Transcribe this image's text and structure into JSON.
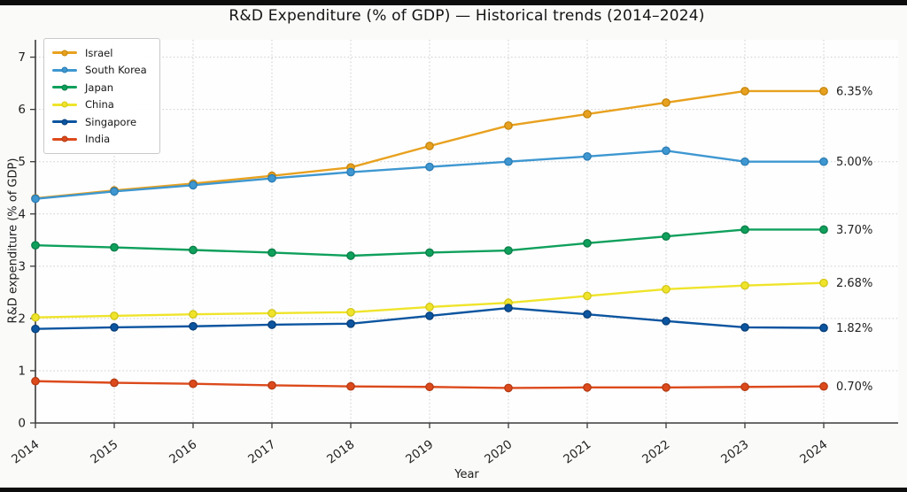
{
  "chart_data": {
    "type": "line",
    "title": "R&D Expenditure (% of GDP) — Historical trends (2014–2024)",
    "xlabel": "Year",
    "ylabel": "R&D expenditure (% of GDP)",
    "x": [
      2014,
      2015,
      2016,
      2017,
      2018,
      2019,
      2020,
      2021,
      2022,
      2023,
      2024
    ],
    "ylim": [
      0,
      7.5
    ],
    "yticks": [
      0,
      1,
      2,
      3,
      4,
      5,
      6,
      7
    ],
    "grid": true,
    "grid_style": "dotted",
    "legend_position": "upper-left",
    "series": [
      {
        "name": "Israel",
        "color": "#E8A11F",
        "edge": "#C4860F",
        "end_label": "6.35%",
        "values": [
          4.3,
          4.45,
          4.58,
          4.73,
          4.89,
          5.3,
          5.69,
          5.91,
          6.13,
          6.35,
          6.35
        ]
      },
      {
        "name": "South Korea",
        "color": "#3E97D1",
        "edge": "#2B7CB3",
        "end_label": "5.00%",
        "values": [
          4.29,
          4.43,
          4.55,
          4.68,
          4.8,
          4.9,
          5.0,
          5.1,
          5.21,
          5.0,
          5.0
        ]
      },
      {
        "name": "Japan",
        "color": "#0FA05C",
        "edge": "#0B7D47",
        "end_label": "3.70%",
        "values": [
          3.4,
          3.36,
          3.31,
          3.26,
          3.2,
          3.26,
          3.3,
          3.44,
          3.57,
          3.7,
          3.7
        ]
      },
      {
        "name": "China",
        "color": "#EFE42A",
        "edge": "#D2C61A",
        "end_label": "2.68%",
        "values": [
          2.02,
          2.05,
          2.08,
          2.1,
          2.12,
          2.22,
          2.3,
          2.43,
          2.56,
          2.63,
          2.68
        ]
      },
      {
        "name": "Singapore",
        "color": "#0C55A0",
        "edge": "#083E77",
        "end_label": "1.82%",
        "values": [
          1.8,
          1.83,
          1.85,
          1.88,
          1.9,
          2.05,
          2.2,
          2.08,
          1.95,
          1.83,
          1.82
        ]
      },
      {
        "name": "India",
        "color": "#DC4A1C",
        "edge": "#B43A13",
        "end_label": "0.70%",
        "values": [
          0.8,
          0.77,
          0.75,
          0.72,
          0.7,
          0.69,
          0.67,
          0.68,
          0.68,
          0.69,
          0.7
        ]
      }
    ],
    "colors": {
      "grid": "#cccccc",
      "spine": "#3a3a3a",
      "tick_text": "#1f1f1f",
      "end_label_text": "#222222",
      "plot_bg": "#fefefe"
    }
  }
}
